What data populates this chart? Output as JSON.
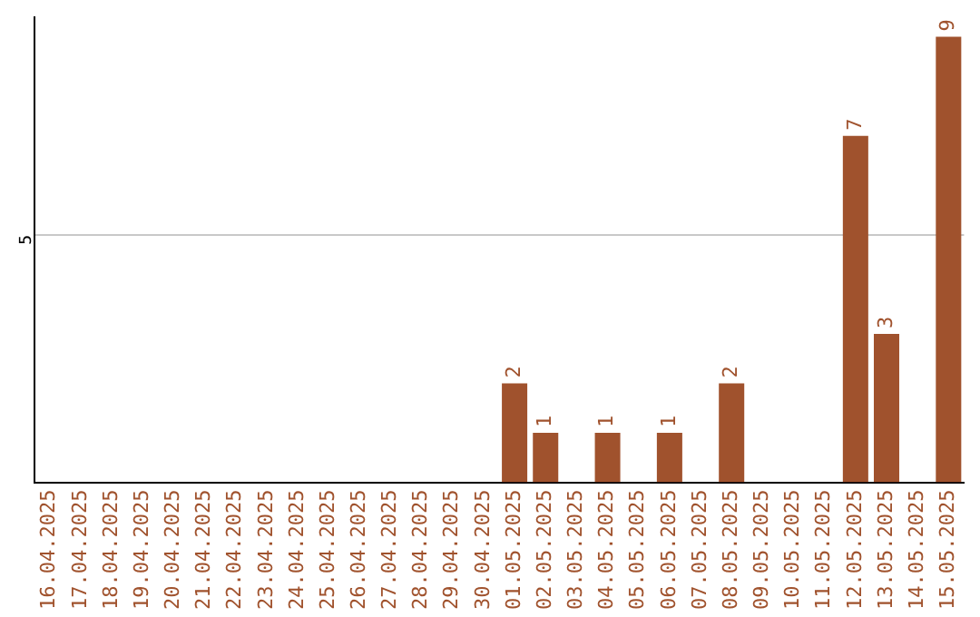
{
  "chart_data": {
    "type": "bar",
    "categories": [
      "16.04.2025",
      "17.04.2025",
      "18.04.2025",
      "19.04.2025",
      "20.04.2025",
      "21.04.2025",
      "22.04.2025",
      "23.04.2025",
      "24.04.2025",
      "25.04.2025",
      "26.04.2025",
      "27.04.2025",
      "28.04.2025",
      "29.04.2025",
      "30.04.2025",
      "01.05.2025",
      "02.05.2025",
      "03.05.2025",
      "04.05.2025",
      "05.05.2025",
      "06.05.2025",
      "07.05.2025",
      "08.05.2025",
      "09.05.2025",
      "10.05.2025",
      "11.05.2025",
      "12.05.2025",
      "13.05.2025",
      "14.05.2025",
      "15.05.2025"
    ],
    "values": [
      null,
      null,
      null,
      null,
      null,
      null,
      null,
      null,
      null,
      null,
      null,
      null,
      null,
      null,
      null,
      2,
      1,
      null,
      1,
      null,
      1,
      null,
      2,
      null,
      null,
      null,
      7,
      3,
      null,
      9
    ],
    "data_labels": true,
    "color": "#a0522d",
    "ylim": [
      0,
      9.4
    ],
    "yticks": [
      5
    ],
    "grid": "y",
    "legend": false
  }
}
